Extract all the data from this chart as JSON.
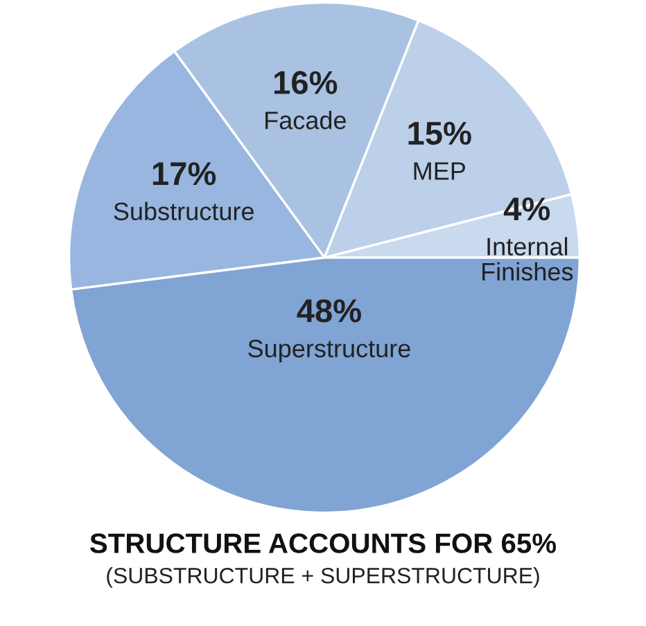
{
  "chart_data": {
    "type": "pie",
    "title": "STRUCTURE ACCOUNTS FOR 65%",
    "subtitle": "(SUBSTRUCTURE + SUPERSTRUCTURE)",
    "categories": [
      "Internal\nFinishes",
      "MEP",
      "Facade",
      "Substructure",
      "Superstructure"
    ],
    "values": [
      4,
      15,
      16,
      17,
      48
    ],
    "colors": [
      "#c9d9ee",
      "#bcd0ea",
      "#a9c2e2",
      "#98b6df",
      "#80a4d3"
    ],
    "value_labels": [
      "4%",
      "15%",
      "16%",
      "17%",
      "48%"
    ]
  }
}
